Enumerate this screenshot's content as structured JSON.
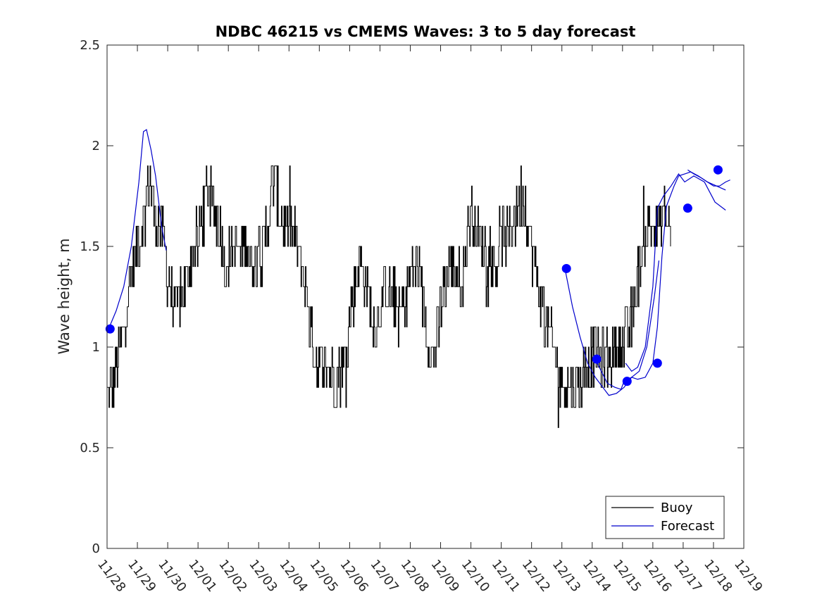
{
  "chart_data": {
    "type": "line",
    "title": "NDBC 46215 vs CMEMS Waves: 3 to 5 day forecast",
    "xlabel": "",
    "ylabel": "Wave height, m",
    "xlim": [
      0,
      21
    ],
    "ylim": [
      0,
      2.5
    ],
    "x_tick_labels": [
      "11/28",
      "11/29",
      "11/30",
      "12/01",
      "12/02",
      "12/03",
      "12/04",
      "12/05",
      "12/06",
      "12/07",
      "12/08",
      "12/09",
      "12/10",
      "12/11",
      "12/12",
      "12/13",
      "12/14",
      "12/15",
      "12/16",
      "12/17",
      "12/18",
      "12/19"
    ],
    "y_ticks": [
      0,
      0.5,
      1,
      1.5,
      2,
      2.5
    ],
    "y_tick_labels": [
      "0",
      "0.5",
      "1",
      "1.5",
      "2",
      "2.5"
    ],
    "legend": {
      "placement": "bottom-right",
      "entries": [
        "Buoy",
        "Forecast"
      ]
    },
    "colors": {
      "buoy": "#000000",
      "forecast": "#0000cc",
      "marker": "#0000ff"
    },
    "buoy_anchor_points": [
      [
        0.0,
        0.75
      ],
      [
        0.15,
        0.8
      ],
      [
        0.3,
        0.9
      ],
      [
        0.45,
        1.0
      ],
      [
        0.6,
        1.15
      ],
      [
        0.75,
        1.3
      ],
      [
        0.9,
        1.45
      ],
      [
        1.05,
        1.55
      ],
      [
        1.2,
        1.6
      ],
      [
        1.3,
        1.75
      ],
      [
        1.4,
        1.85
      ],
      [
        1.5,
        1.75
      ],
      [
        1.6,
        1.6
      ],
      [
        1.7,
        1.6
      ],
      [
        1.8,
        1.55
      ],
      [
        1.9,
        1.5
      ],
      [
        2.0,
        1.35
      ],
      [
        2.15,
        1.25
      ],
      [
        2.3,
        1.2
      ],
      [
        2.45,
        1.25
      ],
      [
        2.6,
        1.3
      ],
      [
        2.75,
        1.45
      ],
      [
        2.85,
        1.5
      ],
      [
        3.0,
        1.5
      ],
      [
        3.15,
        1.65
      ],
      [
        3.3,
        1.8
      ],
      [
        3.45,
        1.7
      ],
      [
        3.6,
        1.65
      ],
      [
        3.75,
        1.55
      ],
      [
        3.9,
        1.4
      ],
      [
        4.05,
        1.45
      ],
      [
        4.2,
        1.5
      ],
      [
        4.35,
        1.45
      ],
      [
        4.5,
        1.5
      ],
      [
        4.6,
        1.55
      ],
      [
        4.75,
        1.4
      ],
      [
        4.9,
        1.45
      ],
      [
        5.0,
        1.55
      ],
      [
        5.1,
        1.4
      ],
      [
        5.25,
        1.6
      ],
      [
        5.4,
        1.75
      ],
      [
        5.5,
        1.85
      ],
      [
        5.65,
        1.7
      ],
      [
        5.8,
        1.6
      ],
      [
        5.95,
        1.55
      ],
      [
        6.1,
        1.6
      ],
      [
        6.25,
        1.5
      ],
      [
        6.4,
        1.4
      ],
      [
        6.55,
        1.3
      ],
      [
        6.7,
        1.1
      ],
      [
        6.85,
        0.95
      ],
      [
        7.0,
        0.9
      ],
      [
        7.15,
        0.9
      ],
      [
        7.3,
        0.9
      ],
      [
        7.45,
        0.85
      ],
      [
        7.6,
        0.85
      ],
      [
        7.75,
        0.9
      ],
      [
        7.9,
        1.0
      ],
      [
        8.05,
        1.2
      ],
      [
        8.2,
        1.35
      ],
      [
        8.35,
        1.45
      ],
      [
        8.5,
        1.35
      ],
      [
        8.65,
        1.2
      ],
      [
        8.8,
        1.1
      ],
      [
        8.95,
        1.15
      ],
      [
        9.1,
        1.25
      ],
      [
        9.25,
        1.3
      ],
      [
        9.4,
        1.25
      ],
      [
        9.55,
        1.2
      ],
      [
        9.7,
        1.2
      ],
      [
        9.85,
        1.25
      ],
      [
        10.0,
        1.35
      ],
      [
        10.15,
        1.4
      ],
      [
        10.3,
        1.35
      ],
      [
        10.45,
        1.2
      ],
      [
        10.6,
        1.0
      ],
      [
        10.75,
        0.95
      ],
      [
        10.9,
        1.05
      ],
      [
        11.05,
        1.25
      ],
      [
        11.2,
        1.35
      ],
      [
        11.35,
        1.4
      ],
      [
        11.5,
        1.4
      ],
      [
        11.65,
        1.3
      ],
      [
        11.8,
        1.45
      ],
      [
        11.9,
        1.6
      ],
      [
        12.0,
        1.7
      ],
      [
        12.15,
        1.6
      ],
      [
        12.3,
        1.55
      ],
      [
        12.45,
        1.5
      ],
      [
        12.6,
        1.45
      ],
      [
        12.75,
        1.4
      ],
      [
        12.9,
        1.45
      ],
      [
        13.05,
        1.55
      ],
      [
        13.2,
        1.55
      ],
      [
        13.35,
        1.6
      ],
      [
        13.5,
        1.65
      ],
      [
        13.65,
        1.75
      ],
      [
        13.8,
        1.7
      ],
      [
        13.95,
        1.55
      ],
      [
        14.05,
        1.45
      ],
      [
        14.15,
        1.35
      ],
      [
        14.3,
        1.25
      ],
      [
        14.45,
        1.15
      ],
      [
        14.6,
        1.05
      ],
      [
        14.75,
        0.95
      ],
      [
        14.9,
        0.85
      ],
      [
        15.05,
        0.8
      ],
      [
        15.2,
        0.8
      ],
      [
        15.35,
        0.78
      ],
      [
        15.5,
        0.82
      ],
      [
        15.65,
        0.85
      ],
      [
        15.8,
        0.9
      ],
      [
        15.95,
        0.95
      ],
      [
        16.1,
        0.98
      ],
      [
        16.25,
        0.95
      ],
      [
        16.4,
        0.92
      ],
      [
        16.55,
        0.95
      ],
      [
        16.7,
        1.0
      ],
      [
        16.85,
        1.0
      ],
      [
        17.0,
        1.0
      ],
      [
        17.15,
        1.05
      ],
      [
        17.3,
        1.15
      ],
      [
        17.45,
        1.3
      ],
      [
        17.6,
        1.45
      ],
      [
        17.75,
        1.55
      ],
      [
        17.9,
        1.6
      ],
      [
        18.05,
        1.6
      ],
      [
        18.2,
        1.6
      ],
      [
        18.35,
        1.65
      ],
      [
        18.5,
        1.6
      ],
      [
        18.6,
        1.62
      ]
    ],
    "forecast_series": [
      {
        "name": "Forecast",
        "points": [
          [
            0.05,
            1.09
          ],
          [
            0.3,
            1.18
          ],
          [
            0.55,
            1.3
          ],
          [
            0.8,
            1.5
          ],
          [
            1.05,
            1.82
          ],
          [
            1.2,
            2.07
          ],
          [
            1.3,
            2.08
          ],
          [
            1.45,
            1.98
          ],
          [
            1.6,
            1.85
          ],
          [
            1.8,
            1.6
          ],
          [
            1.95,
            1.48
          ]
        ]
      },
      {
        "name": "Forecast",
        "points": [
          [
            15.1,
            1.39
          ],
          [
            15.35,
            1.2
          ],
          [
            15.6,
            1.05
          ],
          [
            15.85,
            0.92
          ],
          [
            16.1,
            0.85
          ],
          [
            16.35,
            0.8
          ],
          [
            16.55,
            0.76
          ],
          [
            16.8,
            0.77
          ],
          [
            17.05,
            0.8
          ],
          [
            17.3,
            0.85
          ],
          [
            17.55,
            0.88
          ],
          [
            17.8,
            1.0
          ],
          [
            18.05,
            1.25
          ],
          [
            18.2,
            1.43
          ]
        ]
      },
      {
        "name": "Forecast",
        "points": [
          [
            16.1,
            0.94
          ],
          [
            16.3,
            0.88
          ],
          [
            16.5,
            0.82
          ],
          [
            16.75,
            0.8
          ],
          [
            16.95,
            0.79
          ],
          [
            17.05,
            0.83
          ],
          [
            17.3,
            0.85
          ],
          [
            17.5,
            0.84
          ],
          [
            17.75,
            0.85
          ],
          [
            18.0,
            0.92
          ],
          [
            18.15,
            1.1
          ],
          [
            18.3,
            1.45
          ],
          [
            18.45,
            1.7
          ],
          [
            18.7,
            1.8
          ],
          [
            18.85,
            1.85
          ],
          [
            19.05,
            1.86
          ],
          [
            19.25,
            1.87
          ],
          [
            19.5,
            1.85
          ],
          [
            19.8,
            1.82
          ],
          [
            20.1,
            1.8
          ],
          [
            20.4,
            1.78
          ]
        ]
      },
      {
        "name": "Forecast",
        "points": [
          [
            17.1,
            0.92
          ],
          [
            17.3,
            0.88
          ],
          [
            17.5,
            0.9
          ],
          [
            17.75,
            1.0
          ],
          [
            18.0,
            1.3
          ],
          [
            18.15,
            1.69
          ],
          [
            18.35,
            1.75
          ],
          [
            18.6,
            1.8
          ],
          [
            18.85,
            1.86
          ],
          [
            19.05,
            1.82
          ],
          [
            19.35,
            1.85
          ],
          [
            19.7,
            1.82
          ],
          [
            20.05,
            1.72
          ],
          [
            20.4,
            1.68
          ]
        ]
      },
      {
        "name": "Forecast",
        "points": [
          [
            19.15,
            1.88
          ],
          [
            19.35,
            1.86
          ],
          [
            19.6,
            1.84
          ],
          [
            19.8,
            1.82
          ],
          [
            20.0,
            1.8
          ],
          [
            20.2,
            1.8
          ],
          [
            20.4,
            1.82
          ],
          [
            20.55,
            1.83
          ]
        ]
      }
    ],
    "markers": [
      [
        0.1,
        1.09
      ],
      [
        15.15,
        1.39
      ],
      [
        16.15,
        0.94
      ],
      [
        17.15,
        0.83
      ],
      [
        18.15,
        0.92
      ],
      [
        19.15,
        1.69
      ],
      [
        20.15,
        1.88
      ]
    ]
  }
}
